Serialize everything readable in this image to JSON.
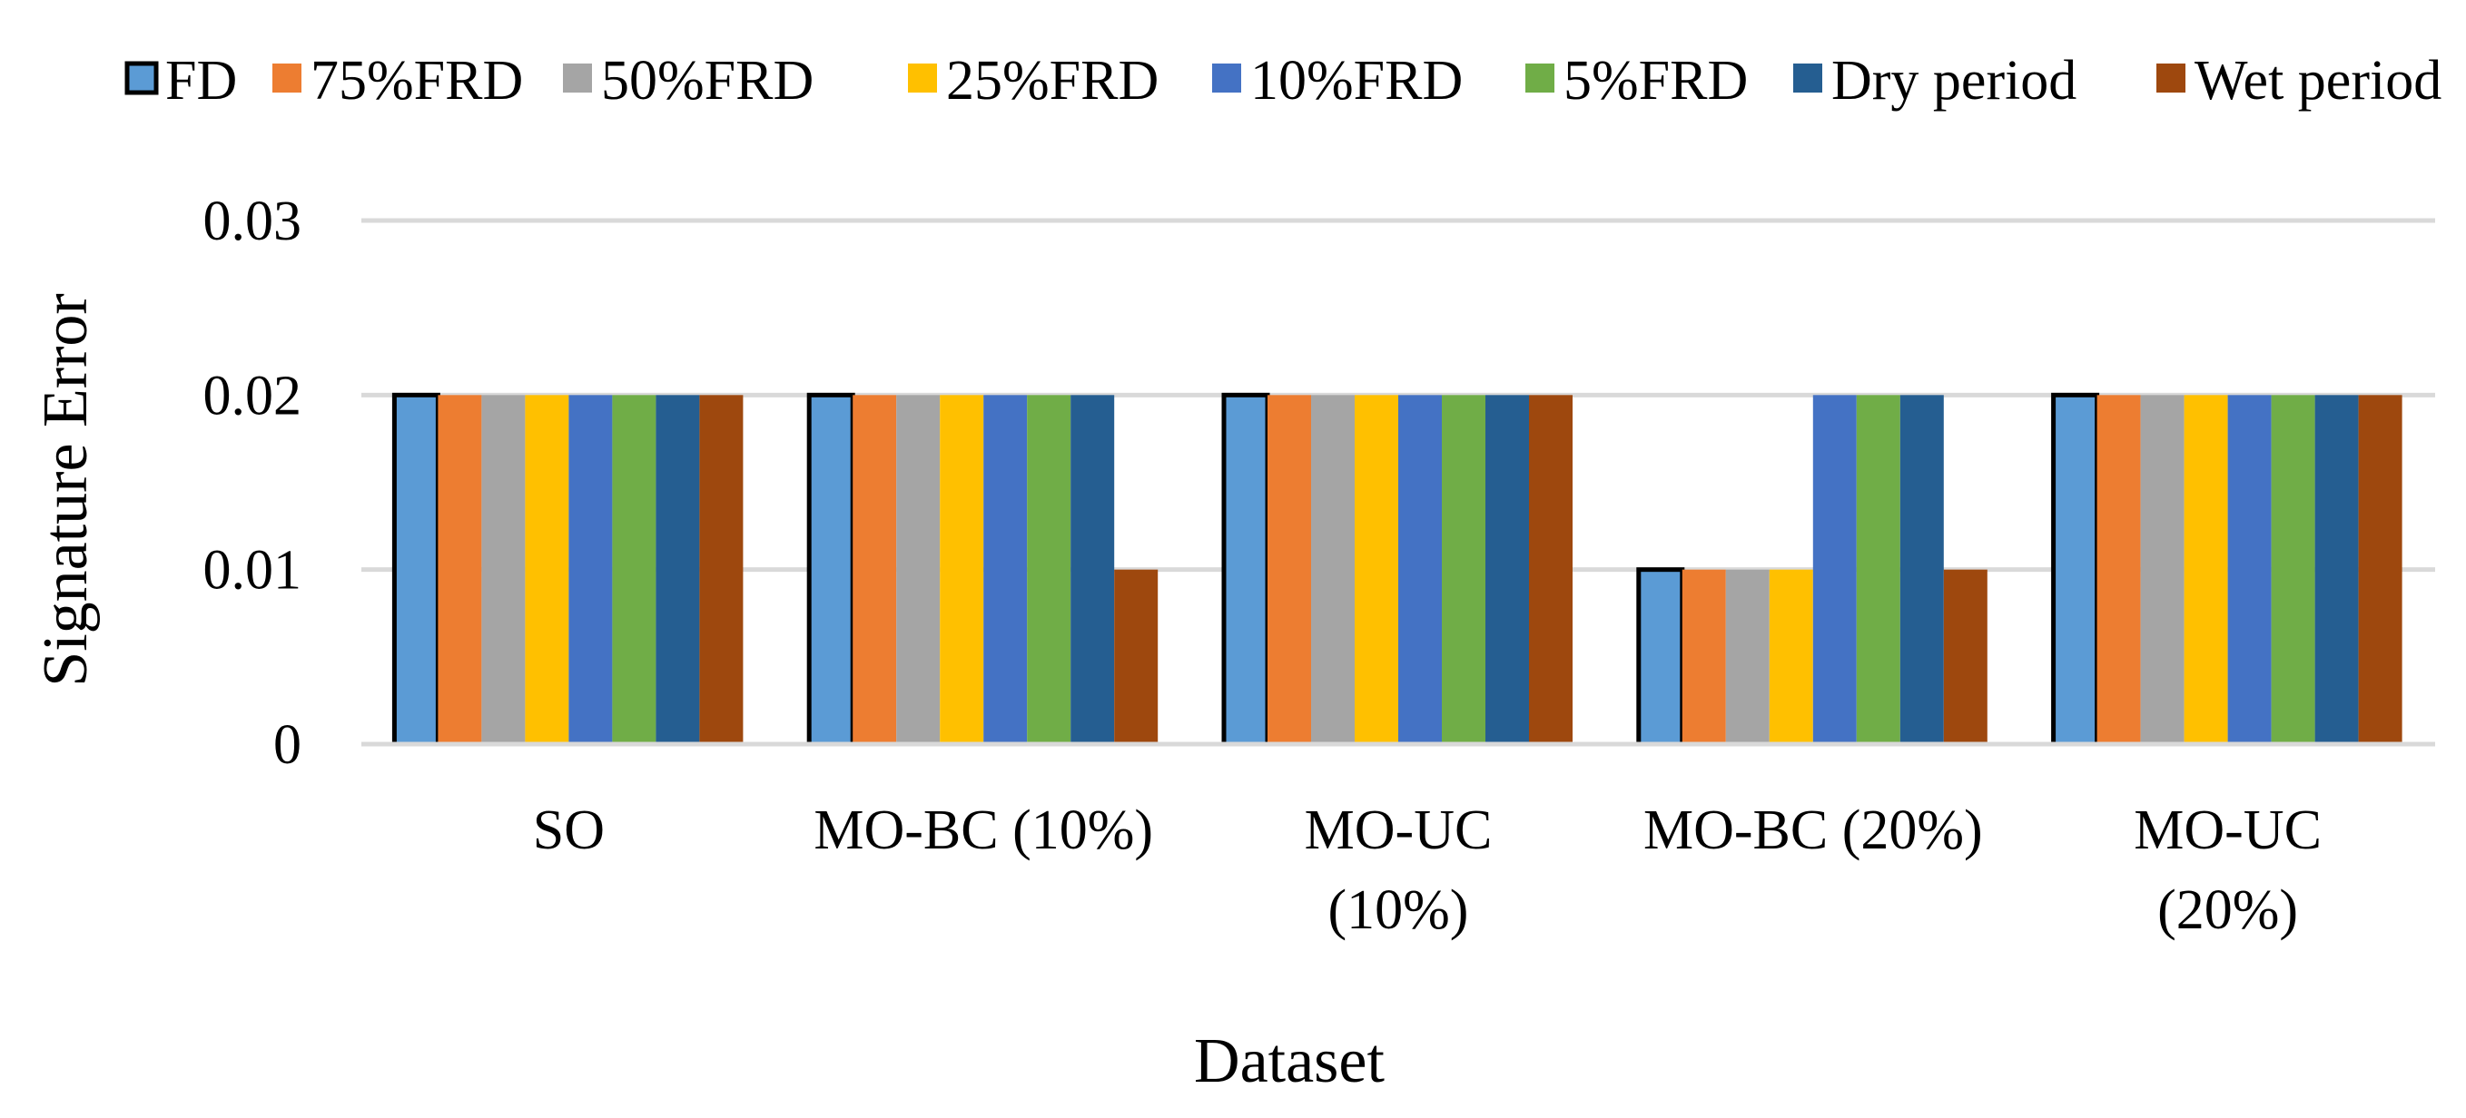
{
  "chart_data": {
    "type": "bar",
    "title": "",
    "xlabel": "Dataset",
    "ylabel": "Signature Error",
    "ylim": [
      0,
      0.03
    ],
    "yticks": [
      {
        "value": 0,
        "label": "0"
      },
      {
        "value": 0.01,
        "label": "0.01"
      },
      {
        "value": 0.02,
        "label": "0.02"
      },
      {
        "value": 0.03,
        "label": "0.03"
      }
    ],
    "grid": true,
    "legend_position": "top",
    "categories": [
      {
        "label": "SO",
        "lines": [
          "SO"
        ]
      },
      {
        "label": "MO-BC (10%)",
        "lines": [
          "MO-BC (10%)"
        ]
      },
      {
        "label": "MO-UC (10%)",
        "lines": [
          "MO-UC",
          "(10%)"
        ]
      },
      {
        "label": "MO-BC (20%)",
        "lines": [
          "MO-BC (20%)"
        ]
      },
      {
        "label": "MO-UC (20%)",
        "lines": [
          "MO-UC",
          "(20%)"
        ]
      }
    ],
    "series": [
      {
        "name": "FD",
        "color": "#5B9BD5",
        "outlined": true,
        "values": [
          0.02,
          0.02,
          0.02,
          0.01,
          0.02
        ]
      },
      {
        "name": "75%FRD",
        "color": "#ED7D31",
        "values": [
          0.02,
          0.02,
          0.02,
          0.01,
          0.02
        ]
      },
      {
        "name": "50%FRD",
        "color": "#A5A5A5",
        "values": [
          0.02,
          0.02,
          0.02,
          0.01,
          0.02
        ]
      },
      {
        "name": "25%FRD",
        "color": "#FFC000",
        "values": [
          0.02,
          0.02,
          0.02,
          0.01,
          0.02
        ]
      },
      {
        "name": "10%FRD",
        "color": "#4472C4",
        "values": [
          0.02,
          0.02,
          0.02,
          0.02,
          0.02
        ]
      },
      {
        "name": "5%FRD",
        "color": "#70AD47",
        "values": [
          0.02,
          0.02,
          0.02,
          0.02,
          0.02
        ]
      },
      {
        "name": "Dry period",
        "color": "#255E91",
        "values": [
          0.02,
          0.02,
          0.02,
          0.02,
          0.02
        ]
      },
      {
        "name": "Wet period",
        "color": "#9E480E",
        "values": [
          0.02,
          0.01,
          0.02,
          0.01,
          0.02
        ]
      }
    ]
  }
}
